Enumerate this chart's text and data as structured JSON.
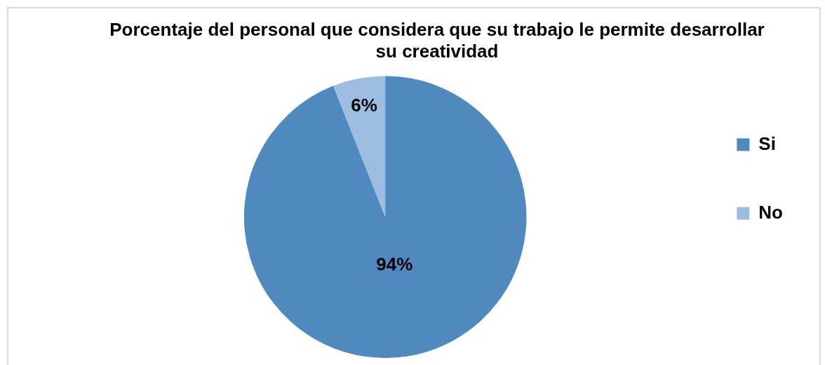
{
  "chart_data": {
    "type": "pie",
    "title": "Porcentaje del personal que considera que su trabajo le permite desarrollar su creatividad",
    "categories": [
      "Si",
      "No"
    ],
    "values": [
      94,
      6
    ],
    "colors": [
      "#4f89bd",
      "#9dbde0"
    ],
    "value_labels": [
      "94%",
      "6%"
    ],
    "legend": "right"
  }
}
